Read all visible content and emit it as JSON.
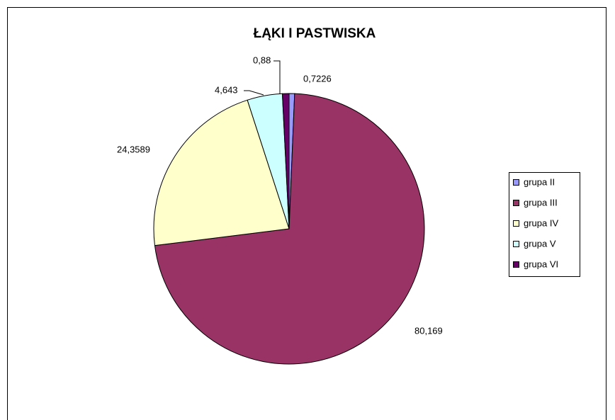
{
  "chart_data": {
    "type": "pie",
    "title": "ŁĄKI I PASTWISKA",
    "categories": [
      "grupa II",
      "grupa III",
      "grupa IV",
      "grupa V",
      "grupa VI"
    ],
    "values": [
      0.7226,
      80.169,
      24.3589,
      4.643,
      0.88
    ],
    "value_labels": [
      "0,7226",
      "80,169",
      "24,3589",
      "4,643",
      "0,88"
    ],
    "colors": [
      "#9999ff",
      "#993366",
      "#ffffcc",
      "#ccffff",
      "#660066"
    ],
    "legend": "right"
  }
}
